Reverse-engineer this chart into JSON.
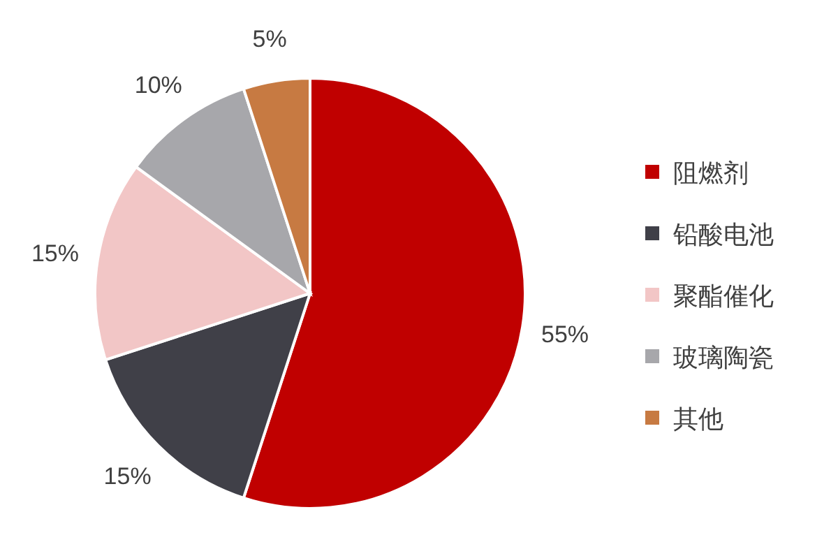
{
  "chart_data": {
    "type": "pie",
    "categories": [
      "阻燃剂",
      "铅酸电池",
      "聚酯催化",
      "玻璃陶瓷",
      "其他"
    ],
    "values": [
      55,
      15,
      15,
      10,
      5
    ],
    "value_labels": [
      "55%",
      "15%",
      "15%",
      "10%",
      "5%"
    ],
    "colors": [
      "#c00000",
      "#404048",
      "#f2c6c6",
      "#a7a7ab",
      "#c77a42"
    ],
    "legend": "right"
  }
}
